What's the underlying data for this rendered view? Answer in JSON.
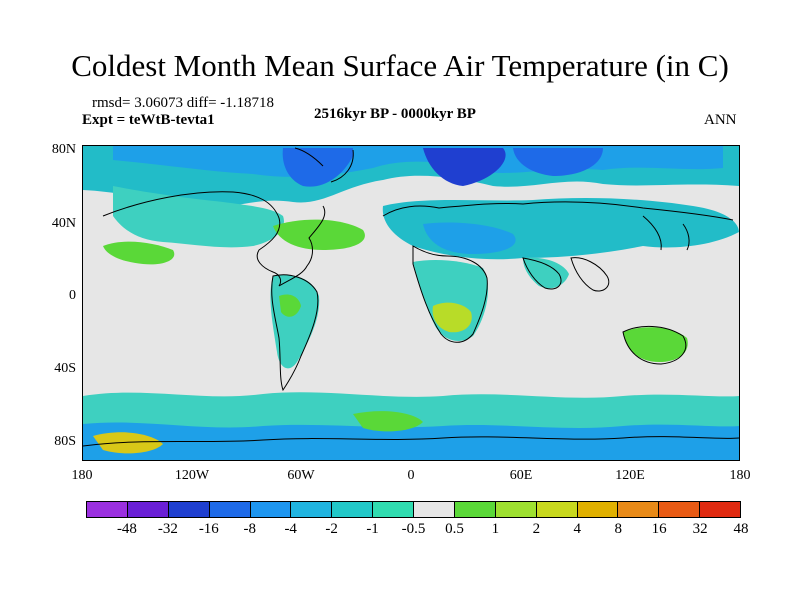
{
  "title": "Coldest Month Mean Surface Air Temperature (in C)",
  "stats": "rmsd= 3.06073 diff= -1.18718",
  "expt": "Expt = teWtB-tevta1",
  "period": "2516kyr BP - 0000kyr BP",
  "season": "ANN",
  "y_ticks": [
    "80N",
    "40N",
    "0",
    "40S",
    "80S"
  ],
  "x_ticks": [
    "180",
    "120W",
    "60W",
    "0",
    "60E",
    "120E",
    "180"
  ],
  "colorbar": {
    "colors": [
      "#9b30e0",
      "#6a1fd6",
      "#1f3fd0",
      "#1e6ae8",
      "#1e96f0",
      "#20b4e0",
      "#22c8c8",
      "#30dcb0",
      "#e6e6e6",
      "#5ad838",
      "#9ee030",
      "#c8d81e",
      "#e0b000",
      "#e88a18",
      "#e85a14",
      "#e02a10"
    ],
    "labels": [
      "-48",
      "-32",
      "-16",
      "-8",
      "-4",
      "-2",
      "-1",
      "-0.5",
      "0.5",
      "1",
      "2",
      "4",
      "8",
      "16",
      "32",
      "48"
    ]
  },
  "map": {
    "palette": {
      "background": "#e6e6e6",
      "light_teal": "#3ed0c0",
      "teal": "#22bcc8",
      "cyan_blue": "#1ea0e8",
      "blue": "#1e6ae8",
      "dark_blue": "#1f3fd0",
      "green": "#5ad838",
      "yellow_green": "#b8dc28",
      "yellow": "#d8c818",
      "coast": "#000000"
    }
  }
}
